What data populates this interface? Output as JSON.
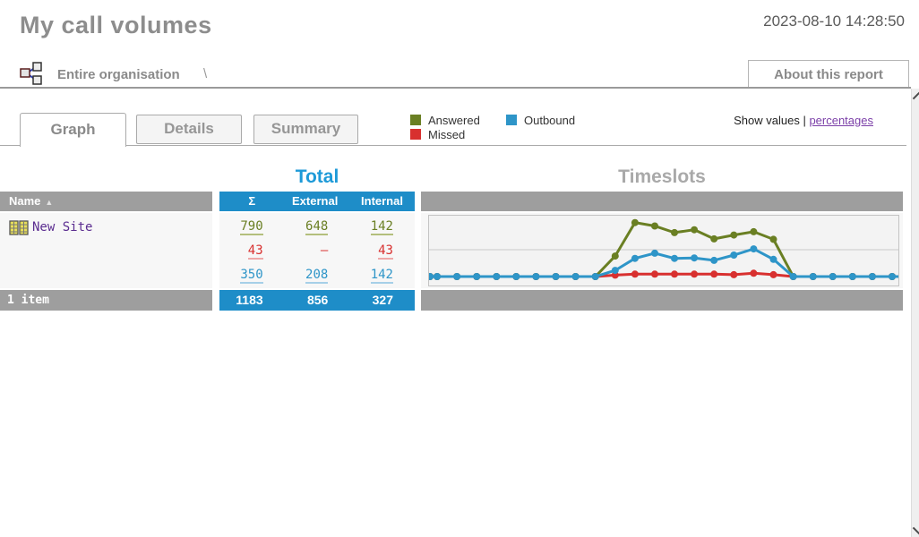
{
  "header": {
    "title": "My call volumes",
    "timestamp": "2023-08-10 14:28:50",
    "breadcrumb": {
      "icon": "org-chart-icon",
      "label": "Entire organisation",
      "separator": "\\"
    },
    "about_button_label": "About this report"
  },
  "tabs": [
    {
      "label": "Graph",
      "active": true
    },
    {
      "label": "Details",
      "active": false
    },
    {
      "label": "Summary",
      "active": false
    }
  ],
  "legend": [
    {
      "label": "Answered",
      "color": "#6a7f23"
    },
    {
      "label": "Missed",
      "color": "#d8302f"
    },
    {
      "label": "Outbound",
      "color": "#2e95c8"
    }
  ],
  "show_values": {
    "prefix": "Show values | ",
    "link_label": "percentages",
    "link_color": "#7b3fa8"
  },
  "table": {
    "total_title": "Total",
    "timeslots_title": "Timeslots",
    "name_header": "Name",
    "sort_indicator": "▲",
    "columns": [
      "Σ",
      "External",
      "Internal"
    ],
    "header_bg": "#1e8dc8",
    "bar_bg": "#9e9e9e",
    "rows": [
      {
        "name": "New Site",
        "icon": "site-buildings-icon",
        "answered": [
          "790",
          "648",
          "142"
        ],
        "missed": [
          "43",
          "–",
          "43"
        ],
        "outbound": [
          "350",
          "208",
          "142"
        ]
      }
    ],
    "footer": {
      "count": "1 item",
      "totals": [
        "1183",
        "856",
        "327"
      ]
    }
  },
  "chart_data": {
    "type": "line",
    "x": [
      0,
      1,
      2,
      3,
      4,
      5,
      6,
      7,
      8,
      9,
      10,
      11,
      12,
      13,
      14,
      15,
      16,
      17,
      18,
      19,
      20,
      21,
      22,
      23
    ],
    "series": [
      {
        "name": "Missed",
        "color": "#d8302f",
        "values": [
          0,
          0,
          0,
          0,
          0,
          0,
          0,
          0,
          0,
          3,
          5,
          5,
          5,
          5,
          5,
          4,
          7,
          4,
          0,
          0,
          0,
          0,
          0,
          0
        ]
      },
      {
        "name": "Answered",
        "color": "#6a7f23",
        "values": [
          0,
          0,
          0,
          0,
          0,
          0,
          0,
          0,
          0,
          43,
          113,
          106,
          92,
          98,
          79,
          87,
          94,
          78,
          0,
          0,
          0,
          0,
          0,
          0
        ]
      },
      {
        "name": "Outbound",
        "color": "#2e95c8",
        "values": [
          0,
          0,
          0,
          0,
          0,
          0,
          0,
          0,
          0,
          13,
          38,
          49,
          38,
          39,
          34,
          45,
          58,
          36,
          0,
          0,
          0,
          0,
          0,
          0
        ]
      }
    ],
    "title": "Timeslots",
    "xlabel": "",
    "ylabel": "",
    "ylim": [
      0,
      120
    ],
    "grid": true,
    "tick_labels_visible": false,
    "legend_position": "top-of-page"
  }
}
